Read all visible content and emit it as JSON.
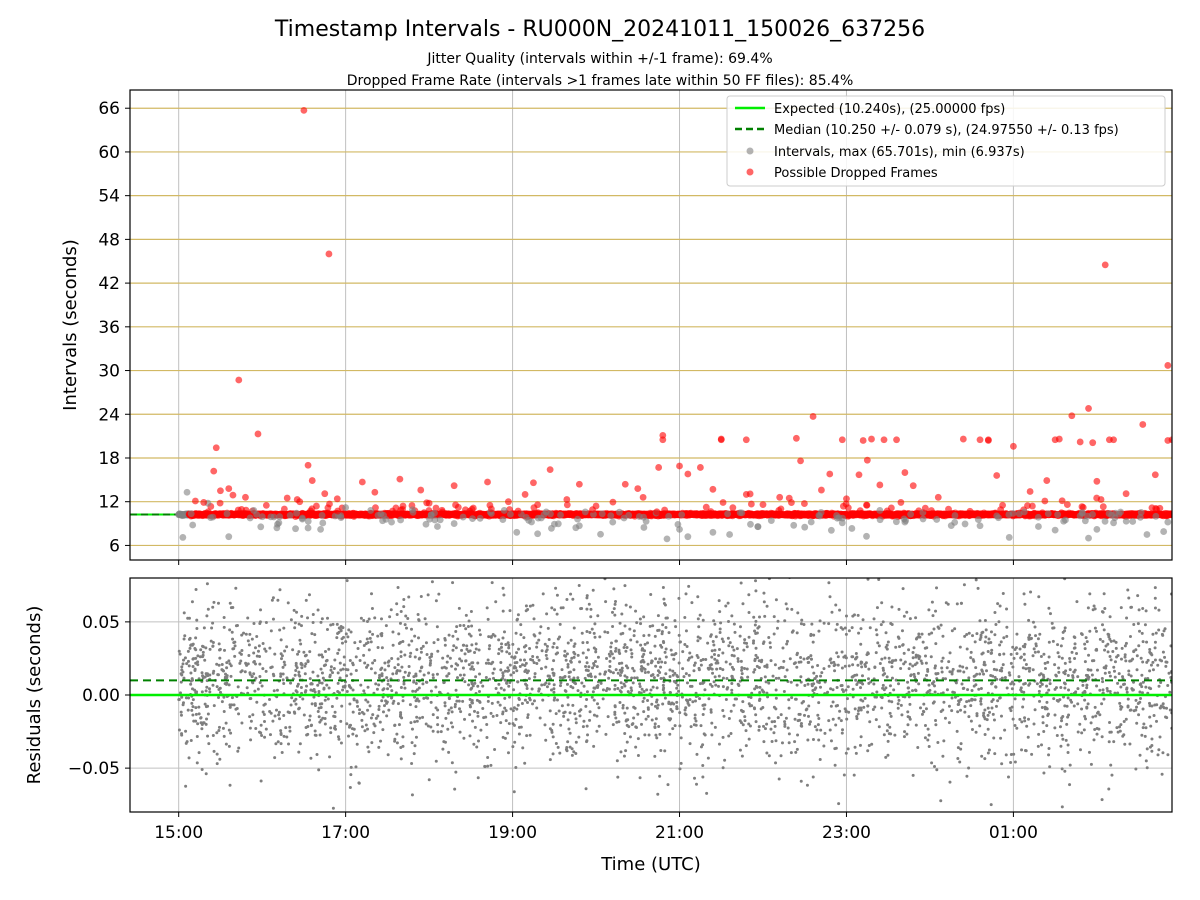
{
  "chart_data": [
    {
      "type": "scatter",
      "title": "Timestamp Intervals - RU000N_20241011_150026_637256",
      "subtitle_lines": [
        "Jitter Quality (intervals within +/-1 frame): 69.4%",
        "Dropped Frame Rate (intervals >1 frames late within 50 FF files): 85.4%"
      ],
      "ylabel": "Intervals (seconds)",
      "xlabel": "",
      "ylim": [
        4,
        68.5
      ],
      "yticks": [
        6,
        12,
        18,
        24,
        30,
        36,
        42,
        48,
        54,
        60,
        66
      ],
      "ytick_labels": [
        "6",
        "12",
        "18",
        "24",
        "30",
        "36",
        "42",
        "48",
        "54",
        "60",
        "66"
      ],
      "xlim_hours": [
        14.4167,
        26.9
      ],
      "legend_position": "upper right",
      "grid": "horizontal goldenrod lines, vertical grey lines",
      "colors": {
        "expected": "#00ee00",
        "median": "#008000",
        "intervals": "#808080",
        "dropped": "#ff0000",
        "hgrid": "#d2b964",
        "vgrid": "#c0c0c0"
      },
      "expected_interval": 10.24,
      "median_interval": 10.25,
      "series": [
        {
          "name": "Expected (10.240s), (25.00000 fps)",
          "kind": "line"
        },
        {
          "name": "Median (10.250 +/- 0.079 s), (24.97550 +/- 0.13 fps)",
          "kind": "dashed-line"
        },
        {
          "name": "Intervals, max (65.701s), min (6.937s)",
          "kind": "points",
          "points": [
            [
              15.05,
              7.1
            ],
            [
              15.1,
              13.3
            ],
            [
              15.35,
              11.8
            ],
            [
              15.6,
              7.2
            ],
            [
              15.9,
              10.8
            ],
            [
              16.2,
              9.1
            ],
            [
              16.4,
              8.3
            ],
            [
              16.55,
              8.4
            ],
            [
              16.7,
              8.2
            ],
            [
              17.0,
              11.2
            ],
            [
              17.3,
              10.8
            ],
            [
              17.55,
              9.2
            ],
            [
              17.8,
              10.9
            ],
            [
              18.1,
              8.6
            ],
            [
              18.3,
              9.0
            ],
            [
              18.9,
              10.8
            ],
            [
              19.05,
              7.8
            ],
            [
              19.3,
              7.6
            ],
            [
              19.8,
              8.7
            ],
            [
              20.2,
              9.2
            ],
            [
              20.6,
              9.3
            ],
            [
              20.85,
              6.9
            ],
            [
              21.0,
              8.2
            ],
            [
              21.1,
              7.2
            ],
            [
              21.4,
              7.8
            ],
            [
              21.6,
              7.5
            ],
            [
              21.85,
              8.9
            ],
            [
              22.1,
              9.4
            ],
            [
              22.5,
              8.5
            ],
            [
              22.95,
              9.1
            ],
            [
              23.4,
              10.8
            ],
            [
              23.7,
              9.2
            ],
            [
              24.3,
              10.1
            ],
            [
              24.6,
              8.7
            ],
            [
              24.95,
              7.1
            ],
            [
              25.3,
              8.6
            ],
            [
              25.5,
              8.1
            ],
            [
              25.9,
              7.0
            ],
            [
              26.0,
              8.2
            ],
            [
              26.2,
              9.1
            ],
            [
              26.6,
              7.5
            ],
            [
              26.8,
              7.9
            ],
            [
              26.85,
              9.2
            ]
          ]
        },
        {
          "name": "Possible Dropped Frames",
          "kind": "points",
          "points": [
            [
              15.2,
              12.1
            ],
            [
              15.3,
              11.9
            ],
            [
              15.45,
              19.4
            ],
            [
              15.42,
              16.2
            ],
            [
              15.5,
              13.5
            ],
            [
              15.6,
              13.8
            ],
            [
              15.65,
              12.9
            ],
            [
              15.72,
              28.7
            ],
            [
              15.8,
              12.6
            ],
            [
              15.95,
              21.3
            ],
            [
              16.05,
              11.5
            ],
            [
              16.3,
              12.5
            ],
            [
              16.42,
              12.3
            ],
            [
              16.45,
              12.0
            ],
            [
              16.5,
              65.7
            ],
            [
              16.55,
              17.0
            ],
            [
              16.6,
              14.9
            ],
            [
              16.65,
              11.4
            ],
            [
              16.75,
              13.1
            ],
            [
              16.8,
              46.0
            ],
            [
              16.9,
              12.4
            ],
            [
              17.2,
              14.7
            ],
            [
              17.35,
              13.3
            ],
            [
              17.65,
              15.1
            ],
            [
              17.9,
              13.6
            ],
            [
              18.0,
              11.8
            ],
            [
              18.3,
              14.2
            ],
            [
              18.7,
              14.7
            ],
            [
              18.95,
              12.0
            ],
            [
              19.15,
              13.0
            ],
            [
              19.25,
              14.6
            ],
            [
              19.45,
              16.4
            ],
            [
              19.65,
              12.3
            ],
            [
              19.8,
              14.4
            ],
            [
              20.0,
              11.4
            ],
            [
              20.35,
              14.4
            ],
            [
              20.5,
              13.8
            ],
            [
              20.75,
              16.7
            ],
            [
              20.8,
              20.5
            ],
            [
              20.8,
              21.1
            ],
            [
              21.0,
              16.9
            ],
            [
              21.1,
              15.8
            ],
            [
              21.25,
              16.7
            ],
            [
              21.4,
              13.7
            ],
            [
              21.5,
              20.5
            ],
            [
              21.5,
              20.6
            ],
            [
              21.8,
              20.5
            ],
            [
              21.8,
              13.0
            ],
            [
              22.0,
              11.6
            ],
            [
              22.2,
              12.6
            ],
            [
              22.4,
              20.7
            ],
            [
              22.45,
              17.6
            ],
            [
              22.6,
              23.7
            ],
            [
              22.7,
              13.6
            ],
            [
              22.8,
              15.8
            ],
            [
              22.95,
              20.5
            ],
            [
              23.0,
              12.4
            ],
            [
              23.15,
              15.7
            ],
            [
              23.2,
              20.4
            ],
            [
              23.25,
              17.7
            ],
            [
              23.3,
              20.6
            ],
            [
              23.4,
              14.3
            ],
            [
              23.45,
              20.5
            ],
            [
              23.6,
              20.5
            ],
            [
              23.7,
              16.0
            ],
            [
              23.8,
              14.2
            ],
            [
              24.1,
              12.6
            ],
            [
              24.4,
              20.6
            ],
            [
              24.6,
              20.5
            ],
            [
              24.7,
              20.4
            ],
            [
              24.7,
              20.5
            ],
            [
              24.8,
              15.6
            ],
            [
              25.0,
              19.6
            ],
            [
              25.2,
              13.4
            ],
            [
              25.4,
              14.9
            ],
            [
              25.5,
              20.5
            ],
            [
              25.55,
              20.6
            ],
            [
              25.7,
              23.8
            ],
            [
              25.8,
              20.2
            ],
            [
              25.9,
              24.8
            ],
            [
              25.95,
              20.1
            ],
            [
              26.0,
              14.8
            ],
            [
              26.05,
              12.3
            ],
            [
              26.15,
              20.5
            ],
            [
              26.1,
              44.5
            ],
            [
              26.2,
              20.5
            ],
            [
              26.35,
              13.1
            ],
            [
              26.55,
              22.6
            ],
            [
              26.7,
              15.7
            ],
            [
              26.85,
              30.7
            ],
            [
              26.85,
              20.4
            ],
            [
              26.9,
              20.5
            ],
            [
              26.95,
              14.1
            ]
          ]
        }
      ]
    },
    {
      "type": "scatter",
      "title": "",
      "ylabel": "Residuals (seconds)",
      "xlabel": "Time (UTC)",
      "ylim": [
        -0.08,
        0.08
      ],
      "yticks": [
        -0.05,
        0.0,
        0.05
      ],
      "ytick_labels": [
        "−0.05",
        "0.00",
        "0.05"
      ],
      "xticks_hours": [
        15,
        17,
        19,
        21,
        23,
        25
      ],
      "xtick_labels": [
        "15:00",
        "17:00",
        "19:00",
        "21:00",
        "23:00",
        "01:00"
      ],
      "grid": "on",
      "expected_residual": 0.0,
      "median_residual": 0.01,
      "series": [
        {
          "name": "Residuals",
          "kind": "dense-points",
          "x_start": 15.0,
          "x_end": 26.9,
          "count": 3400,
          "mean": 0.01,
          "std": 0.028,
          "color": "#7f7f7f"
        }
      ]
    }
  ]
}
